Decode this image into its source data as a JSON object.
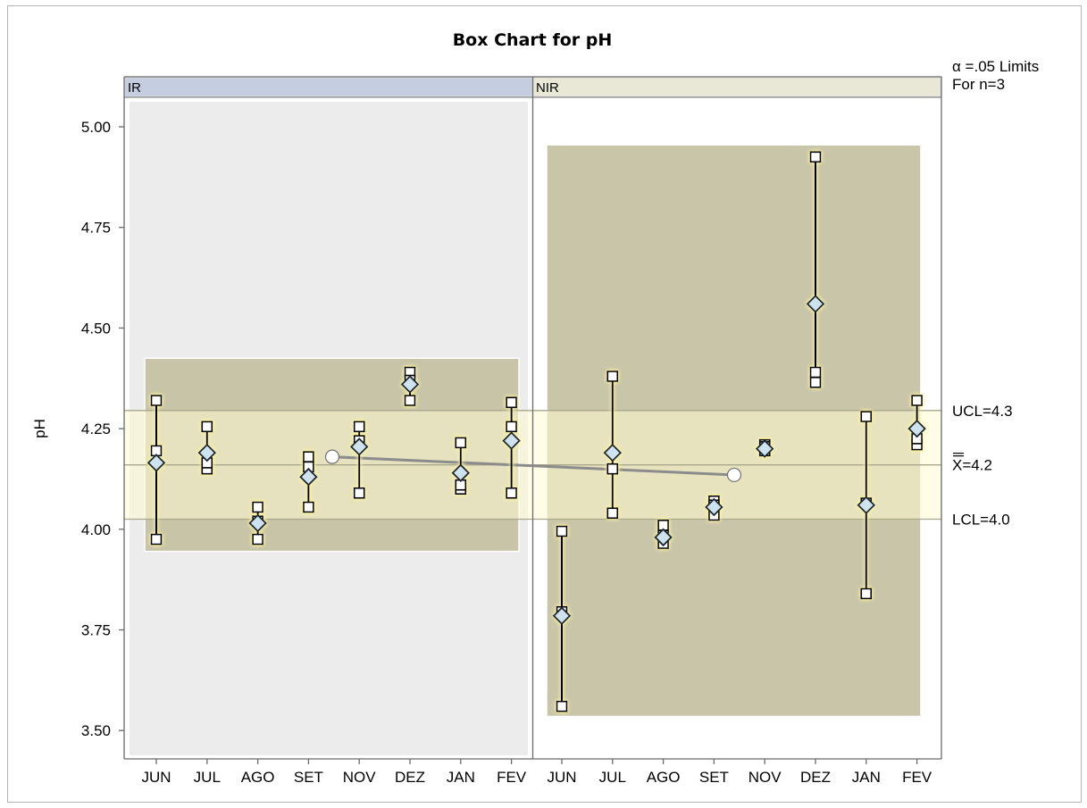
{
  "chart_data": {
    "type": "box",
    "title": "Box Chart for pH",
    "ylabel": "pH",
    "xlabel": "",
    "ylim": [
      3.45,
      5.08
    ],
    "yticks": [
      "5.00",
      "4.75",
      "4.50",
      "4.25",
      "4.00",
      "3.75",
      "3.50"
    ],
    "limits_note": [
      "α =.05 Limits",
      "For n=3"
    ],
    "limits": {
      "ucl": 4.295,
      "center": 4.16,
      "lcl": 4.025,
      "ucl_label": "UCL=4.3",
      "center_label": "X=4.2",
      "lcl_label": "LCL=4.0"
    },
    "categories": [
      "JUN",
      "JUL",
      "AGO",
      "SET",
      "NOV",
      "DEZ",
      "JAN",
      "FEV"
    ],
    "panels": [
      {
        "label": "IR",
        "phase_box": {
          "min": 3.945,
          "max": 4.425
        },
        "phase_mean_marker": 4.18,
        "groups": [
          {
            "min": 3.975,
            "max": 4.32,
            "median": 4.195,
            "mean": 4.165
          },
          {
            "min": 4.15,
            "max": 4.255,
            "median": 4.165,
            "mean": 4.19
          },
          {
            "min": 3.975,
            "max": 4.055,
            "median": 4.02,
            "mean": 4.015
          },
          {
            "min": 4.055,
            "max": 4.18,
            "median": 4.155,
            "mean": 4.13
          },
          {
            "min": 4.09,
            "max": 4.255,
            "median": 4.22,
            "mean": 4.205
          },
          {
            "min": 4.32,
            "max": 4.39,
            "median": 4.37,
            "mean": 4.36
          },
          {
            "min": 4.1,
            "max": 4.215,
            "median": 4.11,
            "mean": 4.14
          },
          {
            "min": 4.09,
            "max": 4.315,
            "median": 4.255,
            "mean": 4.22
          }
        ]
      },
      {
        "label": "NIR",
        "phase_box": {
          "min": 3.535,
          "max": 4.955
        },
        "phase_mean_marker": 4.135,
        "groups": [
          {
            "min": 3.56,
            "max": 3.995,
            "median": 3.795,
            "mean": 3.785
          },
          {
            "min": 4.04,
            "max": 4.38,
            "median": 4.15,
            "mean": 4.19
          },
          {
            "min": 3.965,
            "max": 4.01,
            "median": 3.985,
            "mean": 3.98
          },
          {
            "min": 4.035,
            "max": 4.07,
            "median": 4.06,
            "mean": 4.055
          },
          {
            "min": 4.195,
            "max": 4.21,
            "median": 4.205,
            "mean": 4.2
          },
          {
            "min": 4.365,
            "max": 4.925,
            "median": 4.39,
            "mean": 4.56
          },
          {
            "min": 3.84,
            "max": 4.28,
            "median": 4.065,
            "mean": 4.06
          },
          {
            "min": 4.21,
            "max": 4.32,
            "median": 4.225,
            "mean": 4.25
          }
        ]
      }
    ],
    "colors": {
      "ir_header": "#c5cee0",
      "nir_header": "#e9e8d7",
      "ir_bg": "#ececec",
      "phase_box": "#c6c2a4",
      "limit_band": "#fffbd2",
      "marker_fill": "#cfe3ee",
      "trend_line": "#8c8c8c"
    }
  }
}
